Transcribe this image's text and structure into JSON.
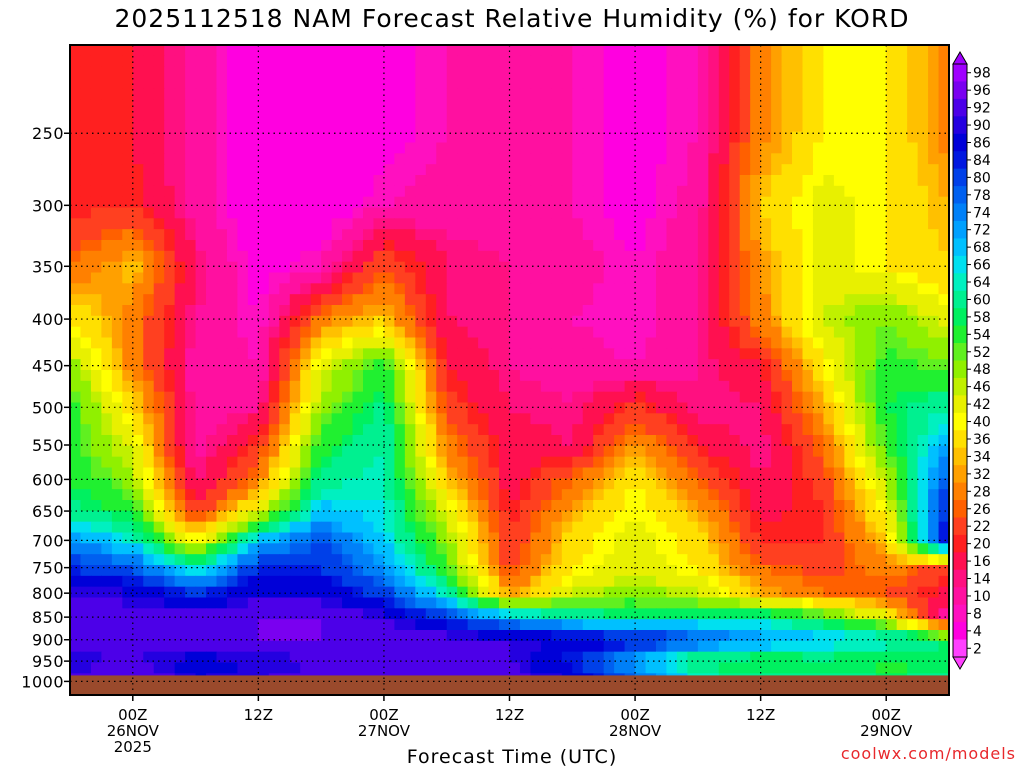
{
  "title": "2025112518 NAM Forecast Relative Humidity (%) for KORD",
  "watermark": "coolwx.com/models",
  "chart_data": {
    "type": "heatmap",
    "title": "2025112518 NAM Forecast Relative Humidity (%) for KORD",
    "xlabel": "Forecast Time (UTC)",
    "ylabel": "",
    "y_axis": {
      "scale": "log-pressure",
      "inverted": true,
      "range_hPa": [
        1035,
        200
      ],
      "ticks": [
        250,
        300,
        350,
        400,
        450,
        500,
        550,
        600,
        650,
        700,
        750,
        800,
        850,
        900,
        950,
        1000
      ]
    },
    "x_axis": {
      "units": "hours since 2025-11-25 18Z",
      "range": [
        0,
        84
      ],
      "ticks": [
        {
          "hour": 6,
          "lines": [
            "00Z",
            "26NOV",
            "2025"
          ]
        },
        {
          "hour": 18,
          "lines": [
            "12Z"
          ]
        },
        {
          "hour": 30,
          "lines": [
            "00Z",
            "27NOV"
          ]
        },
        {
          "hour": 42,
          "lines": [
            "12Z"
          ]
        },
        {
          "hour": 54,
          "lines": [
            "00Z",
            "28NOV"
          ]
        },
        {
          "hour": 66,
          "lines": [
            "12Z"
          ]
        },
        {
          "hour": 78,
          "lines": [
            "00Z",
            "29NOV"
          ]
        }
      ]
    },
    "grid": true,
    "colorbar": {
      "labels": [
        98,
        96,
        92,
        90,
        86,
        84,
        80,
        78,
        74,
        72,
        68,
        66,
        64,
        60,
        58,
        54,
        52,
        48,
        46,
        42,
        40,
        36,
        34,
        32,
        28,
        26,
        22,
        20,
        16,
        14,
        10,
        8,
        4,
        2
      ],
      "colors": [
        "#a000ff",
        "#7a00f0",
        "#4c00e8",
        "#2400e0",
        "#0000d8",
        "#0018e0",
        "#0040e8",
        "#0060f0",
        "#0080f8",
        "#00a0ff",
        "#00c0ff",
        "#00e0f0",
        "#00f0c0",
        "#00f090",
        "#00f060",
        "#20f030",
        "#60f020",
        "#90f000",
        "#c0f000",
        "#e8f000",
        "#ffff00",
        "#ffe000",
        "#ffc000",
        "#ffa000",
        "#ff8000",
        "#ff6000",
        "#ff4020",
        "#ff2020",
        "#ff1050",
        "#ff1080",
        "#ff10a0",
        "#ff10c0",
        "#ff00e0",
        "#ff40ff"
      ],
      "position": "right"
    },
    "ground_color": "#9a4a2c",
    "profile": {
      "times_h": [
        0,
        6,
        12,
        18,
        24,
        30,
        36,
        42,
        48,
        54,
        60,
        66,
        72,
        78,
        84
      ],
      "levels_hPa": [
        250,
        300,
        350,
        400,
        450,
        500,
        550,
        600,
        650,
        700,
        750,
        800,
        850,
        900,
        950,
        1000
      ],
      "rh": [
        [
          20,
          20,
          12,
          4,
          4,
          6,
          10,
          12,
          10,
          6,
          10,
          30,
          40,
          40,
          30
        ],
        [
          20,
          22,
          12,
          4,
          4,
          10,
          12,
          12,
          10,
          6,
          12,
          36,
          44,
          40,
          34
        ],
        [
          28,
          36,
          16,
          6,
          10,
          26,
          16,
          14,
          12,
          8,
          14,
          32,
          44,
          40,
          36
        ],
        [
          40,
          30,
          14,
          8,
          30,
          36,
          16,
          14,
          10,
          8,
          14,
          30,
          46,
          52,
          44
        ],
        [
          50,
          30,
          12,
          10,
          44,
          56,
          20,
          14,
          12,
          10,
          14,
          20,
          40,
          56,
          52
        ],
        [
          56,
          38,
          12,
          14,
          50,
          62,
          24,
          16,
          14,
          24,
          14,
          16,
          34,
          58,
          64
        ],
        [
          56,
          44,
          12,
          22,
          56,
          64,
          30,
          18,
          16,
          32,
          20,
          14,
          28,
          54,
          72
        ],
        [
          58,
          50,
          14,
          30,
          62,
          66,
          36,
          18,
          28,
          40,
          28,
          16,
          24,
          48,
          82
        ],
        [
          62,
          56,
          22,
          44,
          70,
          66,
          44,
          20,
          34,
          42,
          34,
          18,
          22,
          42,
          86
        ],
        [
          74,
          66,
          40,
          70,
          80,
          68,
          50,
          22,
          38,
          44,
          38,
          22,
          22,
          36,
          90
        ],
        [
          84,
          80,
          64,
          84,
          84,
          74,
          54,
          24,
          40,
          44,
          40,
          28,
          24,
          30,
          24
        ],
        [
          92,
          90,
          84,
          90,
          90,
          82,
          64,
          32,
          46,
          50,
          46,
          34,
          28,
          26,
          18
        ],
        [
          96,
          94,
          94,
          96,
          96,
          92,
          82,
          72,
          64,
          60,
          62,
          64,
          56,
          44,
          10
        ],
        [
          96,
          96,
          96,
          96,
          96,
          96,
          94,
          92,
          90,
          88,
          80,
          74,
          70,
          68,
          60
        ],
        [
          90,
          92,
          88,
          90,
          92,
          96,
          94,
          92,
          84,
          72,
          58,
          56,
          58,
          56,
          58
        ],
        [
          94,
          96,
          90,
          92,
          94,
          96,
          96,
          94,
          90,
          78,
          66,
          62,
          64,
          60,
          62
        ]
      ]
    }
  }
}
